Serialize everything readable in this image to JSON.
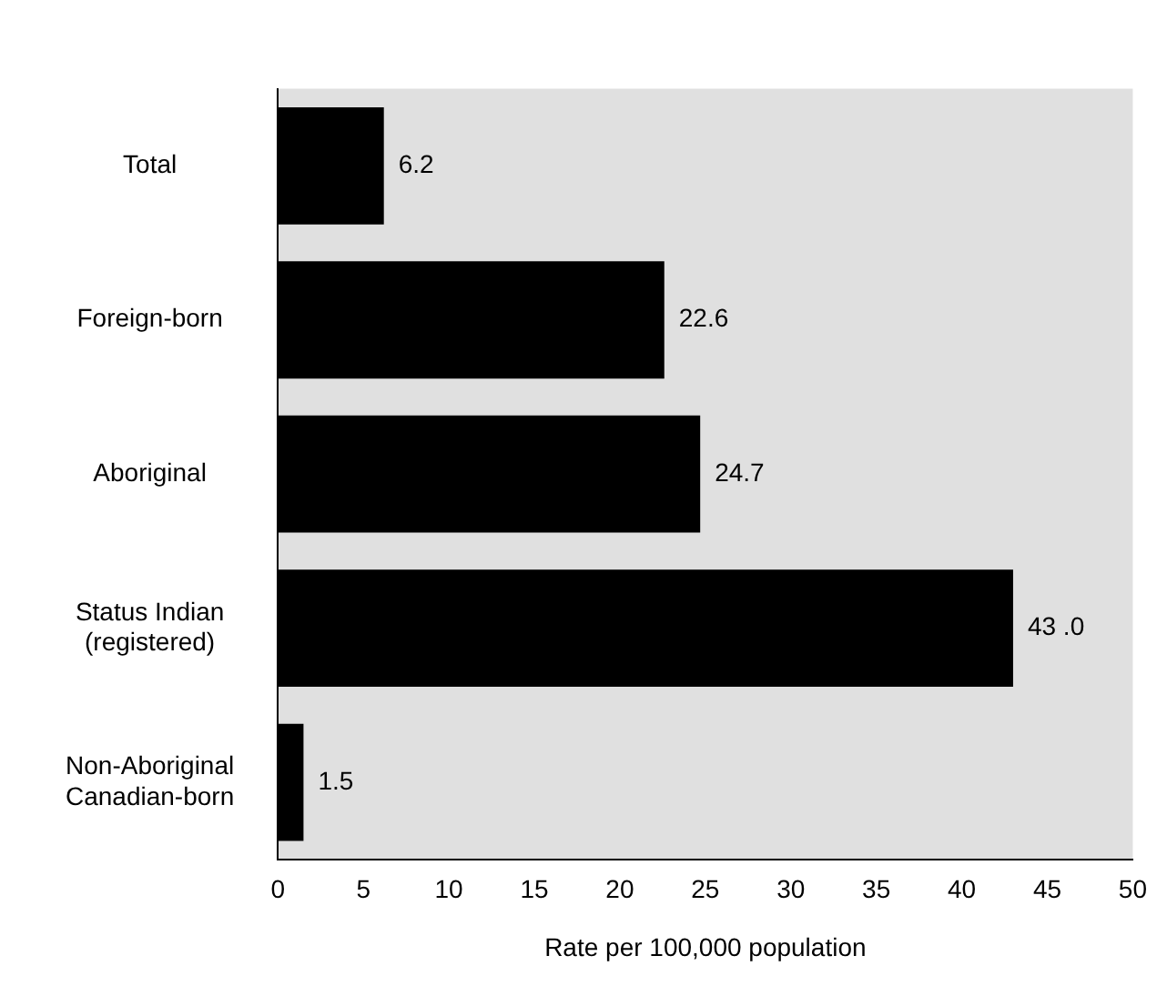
{
  "chart_data": {
    "type": "bar",
    "orientation": "horizontal",
    "categories": [
      "Total",
      "Foreign-born",
      "Aboriginal",
      "Status Indian\n(registered)",
      "Non-Aboriginal\nCanadian-born"
    ],
    "values": [
      6.2,
      22.6,
      24.7,
      43.0,
      1.5
    ],
    "value_labels": [
      "6.2",
      "22.6",
      "24.7",
      "43 .0",
      "1.5"
    ],
    "color": "#000000",
    "xlabel": "Rate per 100,000 population",
    "xlim": [
      0,
      50
    ],
    "xticks": [
      0,
      5,
      10,
      15,
      20,
      25,
      30,
      35,
      40,
      45,
      50
    ],
    "grid": false,
    "legend": false
  }
}
